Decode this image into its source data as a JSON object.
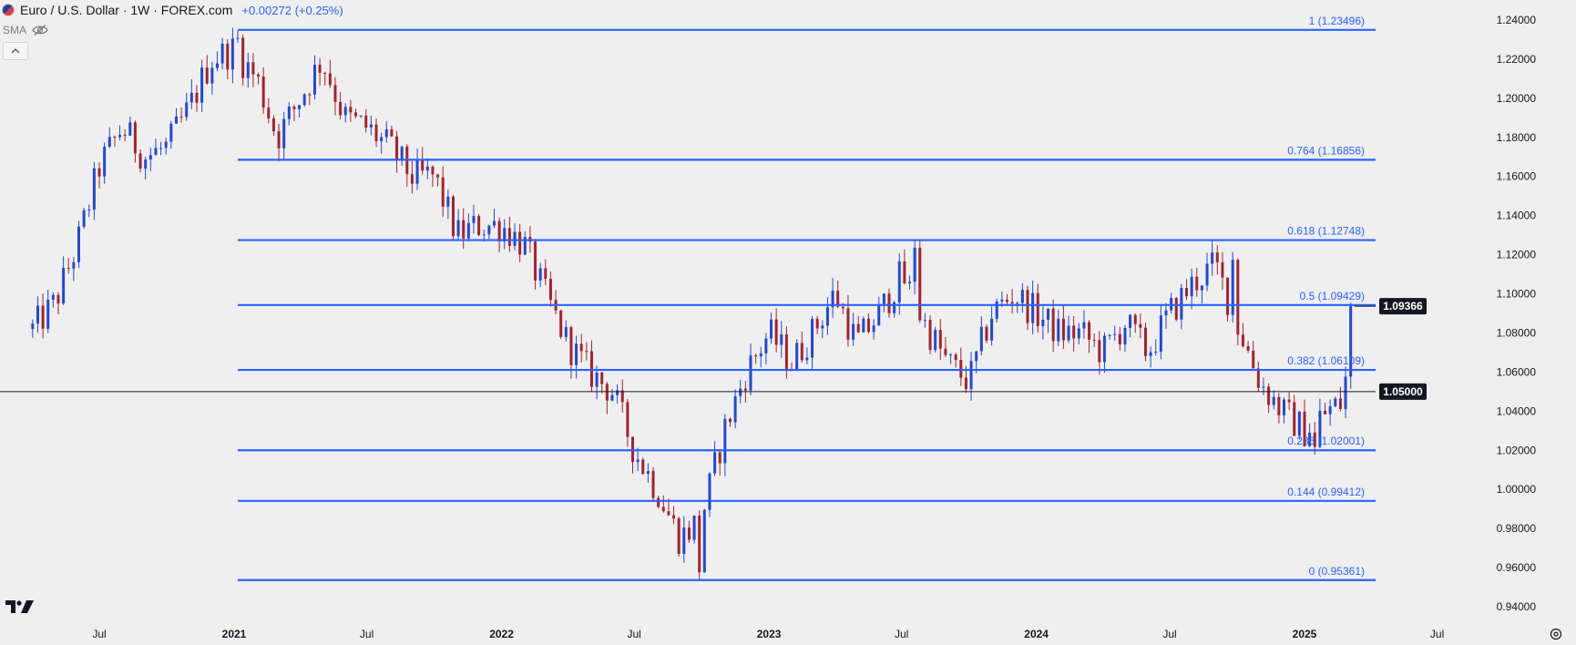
{
  "header": {
    "title": "Euro / U.S. Dollar · 1W · FOREX.com",
    "change": "+0.00272 (+0.25%)",
    "indicator": "SMA"
  },
  "colors": {
    "background": "#efefef",
    "up": "#1f49d6",
    "down": "#a6222b",
    "fib_line": "#2962ff",
    "fib_label": "#2962ff",
    "axis_text": "#131722",
    "price_tag_bg": "#131722",
    "price_tag_text": "#ffffff"
  },
  "icons": [
    "flag-icon",
    "eye-crossed-icon",
    "chevron-up-icon",
    "tradingview-logo-icon",
    "settings-icon"
  ],
  "chart_data": {
    "type": "candlestick",
    "title": "Euro / U.S. Dollar · 1W · FOREX.com",
    "ylim": [
      0.94,
      1.24
    ],
    "y_ticks": [
      "1.24000",
      "1.22000",
      "1.20000",
      "1.18000",
      "1.16000",
      "1.14000",
      "1.12000",
      "1.10000",
      "1.08000",
      "1.06000",
      "1.04000",
      "1.02000",
      "1.00000",
      "0.98000",
      "0.96000",
      "0.94000"
    ],
    "x_ticks": [
      {
        "label": "Jul",
        "date": "2020-07-01"
      },
      {
        "label": "2021",
        "date": "2021-01-01"
      },
      {
        "label": "Jul",
        "date": "2021-07-01"
      },
      {
        "label": "2022",
        "date": "2022-01-01"
      },
      {
        "label": "Jul",
        "date": "2022-07-01"
      },
      {
        "label": "2023",
        "date": "2023-01-01"
      },
      {
        "label": "Jul",
        "date": "2023-07-01"
      },
      {
        "label": "2024",
        "date": "2024-01-01"
      },
      {
        "label": "Jul",
        "date": "2024-07-01"
      },
      {
        "label": "2025",
        "date": "2025-01-01"
      },
      {
        "label": "Jul",
        "date": "2025-07-01"
      }
    ],
    "fib_levels": [
      {
        "label": "1 (1.23496)",
        "value": 1.23496
      },
      {
        "label": "0.764 (1.16856)",
        "value": 1.16856
      },
      {
        "label": "0.618 (1.12748)",
        "value": 1.12748
      },
      {
        "label": "0.5 (1.09429)",
        "value": 1.09429
      },
      {
        "label": "0.382 (1.06109)",
        "value": 1.06109
      },
      {
        "label": "0.236 (1.02001)",
        "value": 1.02001
      },
      {
        "label": "0.144 (0.99412)",
        "value": 0.99412
      },
      {
        "label": "0 (0.95361)",
        "value": 0.95361
      }
    ],
    "horizontal_line": {
      "value": 1.05,
      "label": "1.05000"
    },
    "last_price": {
      "value": 1.09366,
      "label": "1.09366"
    },
    "weekly_close_path": [
      [
        "2020-04-01",
        1.082
      ],
      [
        "2020-05-01",
        1.095
      ],
      [
        "2020-06-01",
        1.125
      ],
      [
        "2020-07-01",
        1.165
      ],
      [
        "2020-08-01",
        1.185
      ],
      [
        "2020-09-01",
        1.17
      ],
      [
        "2020-10-01",
        1.175
      ],
      [
        "2020-11-01",
        1.195
      ],
      [
        "2020-12-01",
        1.22
      ],
      [
        "2021-01-01",
        1.225
      ],
      [
        "2021-02-01",
        1.21
      ],
      [
        "2021-03-01",
        1.18
      ],
      [
        "2021-04-01",
        1.2
      ],
      [
        "2021-05-01",
        1.22
      ],
      [
        "2021-06-01",
        1.19
      ],
      [
        "2021-07-01",
        1.185
      ],
      [
        "2021-08-01",
        1.175
      ],
      [
        "2021-09-01",
        1.16
      ],
      [
        "2021-10-01",
        1.16
      ],
      [
        "2021-11-01",
        1.13
      ],
      [
        "2021-12-01",
        1.135
      ],
      [
        "2022-01-01",
        1.135
      ],
      [
        "2022-02-01",
        1.125
      ],
      [
        "2022-03-01",
        1.1
      ],
      [
        "2022-04-01",
        1.075
      ],
      [
        "2022-05-01",
        1.06
      ],
      [
        "2022-06-01",
        1.05
      ],
      [
        "2022-07-01",
        1.02
      ],
      [
        "2022-08-01",
        1.0
      ],
      [
        "2022-09-01",
        0.975
      ],
      [
        "2022-10-01",
        0.985
      ],
      [
        "2022-11-01",
        1.03
      ],
      [
        "2022-12-01",
        1.06
      ],
      [
        "2023-01-01",
        1.08
      ],
      [
        "2023-02-01",
        1.065
      ],
      [
        "2023-03-01",
        1.08
      ],
      [
        "2023-04-01",
        1.1
      ],
      [
        "2023-05-01",
        1.075
      ],
      [
        "2023-06-01",
        1.09
      ],
      [
        "2023-07-01",
        1.11
      ],
      [
        "2023-08-01",
        1.085
      ],
      [
        "2023-09-01",
        1.065
      ],
      [
        "2023-10-01",
        1.055
      ],
      [
        "2023-11-01",
        1.09
      ],
      [
        "2023-12-01",
        1.1
      ],
      [
        "2024-01-01",
        1.09
      ],
      [
        "2024-02-01",
        1.08
      ],
      [
        "2024-03-01",
        1.08
      ],
      [
        "2024-04-01",
        1.07
      ],
      [
        "2024-05-01",
        1.085
      ],
      [
        "2024-06-01",
        1.07
      ],
      [
        "2024-07-01",
        1.09
      ],
      [
        "2024-08-01",
        1.105
      ],
      [
        "2024-09-01",
        1.115
      ],
      [
        "2024-10-01",
        1.085
      ],
      [
        "2024-11-01",
        1.055
      ],
      [
        "2024-12-01",
        1.04
      ],
      [
        "2025-01-01",
        1.03
      ],
      [
        "2025-02-01",
        1.04
      ],
      [
        "2025-02-24",
        1.045
      ],
      [
        "2025-03-03",
        1.085
      ],
      [
        "2025-03-10",
        1.0937
      ]
    ],
    "anchor_extremes": [
      [
        "2021-01-06",
        1.2349
      ],
      [
        "2022-09-28",
        0.9536
      ],
      [
        "2023-07-18",
        1.1276
      ],
      [
        "2024-09-25",
        1.1214
      ],
      [
        "2025-01-13",
        1.0178
      ]
    ]
  }
}
